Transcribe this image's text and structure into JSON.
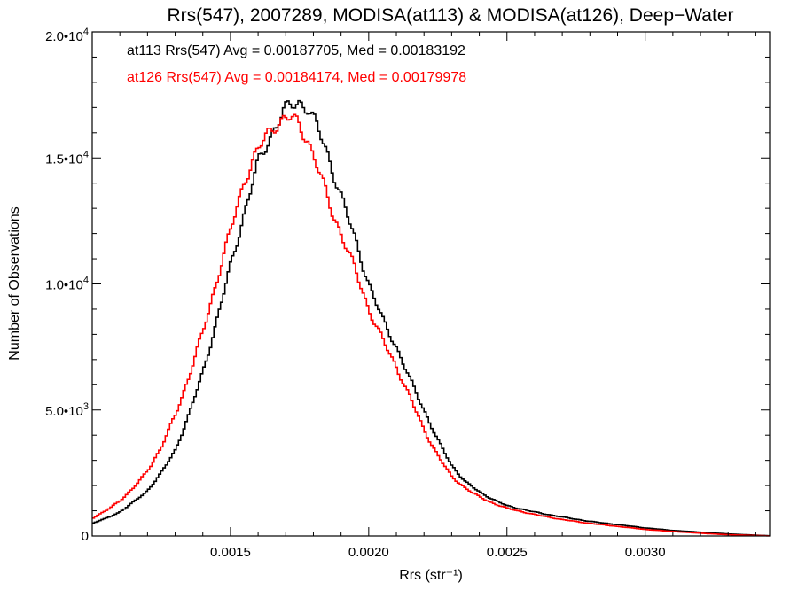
{
  "chart_data": {
    "type": "line",
    "title": "Rrs(547), 2007289, MODISA(at113) & MODISA(at126), Deep−Water",
    "xlabel": "Rrs (str⁻¹)",
    "ylabel": "Number of Observations",
    "xlim": [
      0.001,
      0.00345
    ],
    "ylim": [
      0,
      20000
    ],
    "grid": false,
    "x_ticks": [
      {
        "value": 0.0015,
        "label": "0.0015"
      },
      {
        "value": 0.002,
        "label": "0.0020"
      },
      {
        "value": 0.0025,
        "label": "0.0025"
      },
      {
        "value": 0.003,
        "label": "0.0030"
      }
    ],
    "y_ticks": [
      {
        "value": 0,
        "label": "0"
      },
      {
        "value": 5000,
        "mantissa": "5.0•",
        "base": "10",
        "exp": "3"
      },
      {
        "value": 10000,
        "mantissa": "1.0•",
        "base": "10",
        "exp": "4"
      },
      {
        "value": 15000,
        "mantissa": "1.5•",
        "base": "10",
        "exp": "4"
      },
      {
        "value": 20000,
        "mantissa": "2.0•",
        "base": "10",
        "exp": "4"
      }
    ],
    "annotations": [
      {
        "text": "at113 Rrs(547) Avg = 0.00187705, Med = 0.00183192",
        "color": "#000000"
      },
      {
        "text": "at126 Rrs(547) Avg = 0.00184174, Med = 0.00179978",
        "color": "#ff0000"
      }
    ],
    "series": [
      {
        "color": "#000000",
        "step": true,
        "x": [
          0.001,
          0.00105,
          0.0011,
          0.00115,
          0.0012,
          0.00125,
          0.0013,
          0.00135,
          0.0014,
          0.00145,
          0.0015,
          0.00155,
          0.0016,
          0.00163,
          0.00166,
          0.00169,
          0.00172,
          0.00175,
          0.00178,
          0.00181,
          0.00184,
          0.00187,
          0.0019,
          0.00195,
          0.002,
          0.00205,
          0.0021,
          0.00215,
          0.0022,
          0.00225,
          0.0023,
          0.00235,
          0.0024,
          0.00245,
          0.0025,
          0.0026,
          0.0027,
          0.0028,
          0.0029,
          0.003,
          0.0031,
          0.0032,
          0.0033,
          0.0034,
          0.00345
        ],
        "y": [
          500,
          700,
          950,
          1350,
          1800,
          2500,
          3400,
          4800,
          6500,
          8500,
          10700,
          12800,
          14800,
          15500,
          16200,
          16800,
          17100,
          17200,
          17000,
          16300,
          15500,
          14500,
          13500,
          11800,
          10000,
          8600,
          7500,
          6200,
          5000,
          3800,
          2800,
          2150,
          1750,
          1450,
          1200,
          950,
          750,
          580,
          450,
          320,
          220,
          150,
          80,
          30,
          10
        ]
      },
      {
        "color": "#ff0000",
        "step": true,
        "x": [
          0.001,
          0.00105,
          0.0011,
          0.00115,
          0.0012,
          0.00125,
          0.0013,
          0.00135,
          0.0014,
          0.00145,
          0.0015,
          0.00155,
          0.0016,
          0.00163,
          0.00166,
          0.00169,
          0.00172,
          0.00175,
          0.00178,
          0.00181,
          0.00184,
          0.00187,
          0.0019,
          0.00195,
          0.002,
          0.00205,
          0.0021,
          0.00215,
          0.0022,
          0.00225,
          0.0023,
          0.00235,
          0.0024,
          0.00245,
          0.0025,
          0.0026,
          0.0027,
          0.0028,
          0.0029,
          0.003,
          0.0031,
          0.0032,
          0.0033,
          0.0034,
          0.00345
        ],
        "y": [
          700,
          1000,
          1400,
          1900,
          2600,
          3500,
          4800,
          6300,
          8100,
          10100,
          12100,
          14100,
          15300,
          15900,
          16300,
          16500,
          16600,
          16300,
          15700,
          14800,
          13800,
          12800,
          12000,
          10600,
          9000,
          7800,
          6700,
          5500,
          4200,
          3200,
          2350,
          1900,
          1550,
          1300,
          1100,
          850,
          650,
          500,
          380,
          260,
          180,
          110,
          50,
          20,
          5
        ]
      }
    ]
  }
}
